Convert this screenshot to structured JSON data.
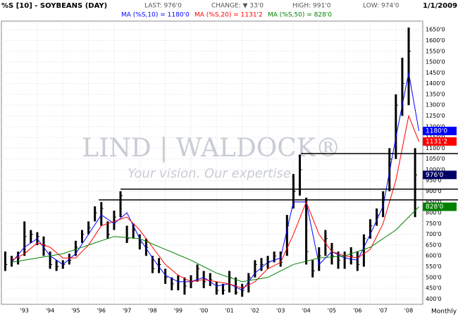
{
  "chart_data": {
    "type": "ohlc",
    "title": "%S [10] - SOYBEANS (DAY)",
    "stats": [
      "LAST: 976'0",
      "CHANGE: ▼ 33'0",
      "HIGH: 991'0",
      "LOW: 974'0"
    ],
    "date": "1/1/2009",
    "period": "Monthly",
    "watermark": "LIND | WALDOCK®",
    "tagline": "Your vision. Our expertise.",
    "xlim": [
      1992.6,
      2009.05
    ],
    "ylim": [
      375,
      1690
    ],
    "xticks": [
      {
        "value": 1993.5,
        "label": "'93"
      },
      {
        "value": 1994.5,
        "label": "'94"
      },
      {
        "value": 1995.5,
        "label": "'95"
      },
      {
        "value": 1996.5,
        "label": "'96"
      },
      {
        "value": 1997.5,
        "label": "'97"
      },
      {
        "value": 1998.5,
        "label": "'98"
      },
      {
        "value": 1999.5,
        "label": "'99"
      },
      {
        "value": 2000.5,
        "label": "'00"
      },
      {
        "value": 2001.5,
        "label": "'01"
      },
      {
        "value": 2002.5,
        "label": "'02"
      },
      {
        "value": 2003.5,
        "label": "'03"
      },
      {
        "value": 2004.5,
        "label": "'04"
      },
      {
        "value": 2005.5,
        "label": "'05"
      },
      {
        "value": 2006.5,
        "label": "'06"
      },
      {
        "value": 2007.5,
        "label": "'07"
      },
      {
        "value": 2008.5,
        "label": "'08"
      }
    ],
    "yticks": [
      {
        "value": 400,
        "label": "400'0"
      },
      {
        "value": 450,
        "label": "450'0"
      },
      {
        "value": 500,
        "label": "500'0"
      },
      {
        "value": 550,
        "label": "550'0"
      },
      {
        "value": 600,
        "label": "600'0"
      },
      {
        "value": 650,
        "label": "650'0"
      },
      {
        "value": 700,
        "label": "700'0"
      },
      {
        "value": 750,
        "label": "750'0"
      },
      {
        "value": 800,
        "label": "800'0"
      },
      {
        "value": 850,
        "label": "850'0"
      },
      {
        "value": 900,
        "label": "900'0"
      },
      {
        "value": 950,
        "label": "950'0"
      },
      {
        "value": 1000,
        "label": "1000'0"
      },
      {
        "value": 1050,
        "label": "1050'0"
      },
      {
        "value": 1100,
        "label": "1100'0"
      },
      {
        "value": 1150,
        "label": "1150'0"
      },
      {
        "value": 1200,
        "label": "1200'0"
      },
      {
        "value": 1250,
        "label": "1250'0"
      },
      {
        "value": 1300,
        "label": "1300'0"
      },
      {
        "value": 1350,
        "label": "1350'0"
      },
      {
        "value": 1400,
        "label": "1400'0"
      },
      {
        "value": 1450,
        "label": "1450'0"
      },
      {
        "value": 1500,
        "label": "1500'0"
      },
      {
        "value": 1550,
        "label": "1550'0"
      },
      {
        "value": 1600,
        "label": "1600'0"
      },
      {
        "value": 1650,
        "label": "1650'0"
      }
    ],
    "grid": true,
    "bar_color": "#000000",
    "bars": {
      "x": [
        1992.75,
        1993,
        1993.25,
        1993.5,
        1993.75,
        1994,
        1994.25,
        1994.5,
        1994.75,
        1995,
        1995.25,
        1995.5,
        1995.75,
        1996,
        1996.25,
        1996.5,
        1996.75,
        1997,
        1997.25,
        1997.5,
        1997.75,
        1998,
        1998.25,
        1998.5,
        1998.75,
        1999,
        1999.25,
        1999.5,
        1999.75,
        2000,
        2000.25,
        2000.5,
        2000.75,
        2001,
        2001.25,
        2001.5,
        2001.75,
        2002,
        2002.25,
        2002.5,
        2002.75,
        2003,
        2003.25,
        2003.5,
        2003.75,
        2004,
        2004.25,
        2004.5,
        2004.75,
        2005,
        2005.25,
        2005.5,
        2005.75,
        2006,
        2006.25,
        2006.5,
        2006.75,
        2007,
        2007.25,
        2007.5,
        2007.75,
        2008,
        2008.25,
        2008.5,
        2008.75
      ],
      "high": [
        620,
        600,
        620,
        760,
        720,
        710,
        690,
        620,
        580,
        580,
        610,
        670,
        720,
        760,
        830,
        850,
        760,
        810,
        900,
        740,
        750,
        700,
        680,
        600,
        590,
        540,
        500,
        510,
        500,
        510,
        560,
        530,
        520,
        480,
        470,
        530,
        500,
        470,
        520,
        580,
        590,
        600,
        620,
        620,
        790,
        980,
        1070,
        870,
        580,
        640,
        720,
        660,
        620,
        620,
        640,
        620,
        700,
        770,
        820,
        900,
        1100,
        1350,
        1520,
        1660,
        1100
      ],
      "low": [
        530,
        550,
        560,
        600,
        660,
        650,
        600,
        540,
        530,
        540,
        560,
        600,
        660,
        700,
        760,
        740,
        680,
        720,
        780,
        660,
        680,
        630,
        600,
        520,
        520,
        470,
        440,
        440,
        420,
        450,
        480,
        450,
        460,
        420,
        420,
        430,
        420,
        410,
        430,
        500,
        530,
        540,
        570,
        550,
        600,
        820,
        880,
        560,
        500,
        530,
        600,
        560,
        540,
        540,
        560,
        530,
        550,
        680,
        740,
        780,
        900,
        1050,
        1250,
        1300,
        780
      ],
      "close": [
        560,
        580,
        590,
        690,
        700,
        690,
        650,
        560,
        550,
        560,
        580,
        640,
        700,
        730,
        800,
        820,
        700,
        780,
        880,
        680,
        720,
        660,
        640,
        540,
        560,
        500,
        470,
        480,
        460,
        480,
        540,
        480,
        490,
        440,
        440,
        500,
        430,
        440,
        500,
        560,
        560,
        570,
        600,
        570,
        740,
        900,
        1000,
        620,
        530,
        600,
        680,
        600,
        580,
        590,
        600,
        560,
        680,
        740,
        790,
        870,
        1050,
        1300,
        1400,
        1550,
        976
      ]
    },
    "series": [
      {
        "name": "MA (%S,10) = 1180'0",
        "tag": "1180'0",
        "tag_value": 1180,
        "color": "#0000ff",
        "x": [
          1993,
          1993.5,
          1994,
          1994.5,
          1995,
          1995.5,
          1996,
          1996.5,
          1997,
          1997.5,
          1998,
          1998.5,
          1999,
          1999.5,
          2000,
          2000.5,
          2001,
          2001.5,
          2002,
          2002.5,
          2003,
          2003.5,
          2004,
          2004.5,
          2005,
          2005.5,
          2006,
          2006.5,
          2007,
          2007.5,
          2008,
          2008.5,
          2008.9
        ],
        "values": [
          570,
          640,
          680,
          600,
          560,
          610,
          700,
          790,
          750,
          800,
          680,
          590,
          510,
          480,
          480,
          500,
          460,
          470,
          440,
          520,
          570,
          590,
          850,
          850,
          560,
          620,
          590,
          580,
          700,
          830,
          1150,
          1450,
          1180
        ]
      },
      {
        "name": "MA (%S,20) = 1131'2",
        "tag": "1131'2",
        "tag_value": 1131.25,
        "color": "#ff0000",
        "x": [
          1993,
          1993.5,
          1994,
          1994.5,
          1995,
          1995.5,
          1996,
          1996.5,
          1997,
          1997.5,
          1998,
          1998.5,
          1999,
          1999.5,
          2000,
          2000.5,
          2001,
          2001.5,
          2002,
          2002.5,
          2003,
          2003.5,
          2004,
          2004.5,
          2005,
          2005.5,
          2006,
          2006.5,
          2007,
          2007.5,
          2008,
          2008.5,
          2008.9
        ],
        "values": [
          580,
          610,
          660,
          640,
          590,
          590,
          650,
          740,
          760,
          780,
          720,
          640,
          560,
          510,
          480,
          490,
          480,
          470,
          450,
          480,
          540,
          570,
          700,
          850,
          700,
          620,
          600,
          590,
          630,
          750,
          950,
          1250,
          1131
        ]
      },
      {
        "name": "MA (%S,50) = 828'0",
        "tag": "828'0",
        "tag_value": 828,
        "color": "#008000",
        "x": [
          1993,
          1994,
          1995,
          1996,
          1997,
          1998,
          1999,
          2000,
          2001,
          2002,
          2003,
          2004,
          2005,
          2006,
          2007,
          2008,
          2008.9
        ],
        "values": [
          570,
          590,
          610,
          650,
          690,
          680,
          630,
          580,
          520,
          480,
          500,
          560,
          590,
          600,
          640,
          720,
          828
        ]
      }
    ],
    "last_tag": "976'0",
    "last_value": 976,
    "last_color": "#000066",
    "hlines": [
      {
        "value": 1075,
        "from": 2004.3
      },
      {
        "value": 910,
        "from": 1997.25
      },
      {
        "value": 860,
        "from": 1996.4
      }
    ]
  }
}
